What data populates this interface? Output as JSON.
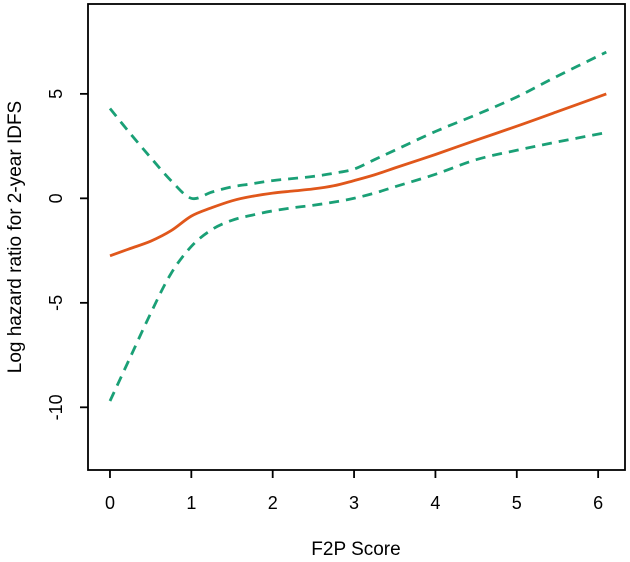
{
  "figure": {
    "kind": "r-base-spline-plot",
    "background": "#ffffff",
    "frame_color": "#000000"
  },
  "chart_data": {
    "type": "line",
    "title": "",
    "xlabel": "F2P Score",
    "ylabel": "Log hazard ratio for 2-year IDFS",
    "xlim": [
      -0.27,
      6.33
    ],
    "ylim": [
      -13.0,
      9.3
    ],
    "x_ticks": [
      "0",
      "1",
      "2",
      "3",
      "4",
      "5",
      "6"
    ],
    "x_tick_values": [
      0,
      1,
      2,
      3,
      4,
      5,
      6
    ],
    "y_ticks": [
      "5",
      "0",
      "-5",
      "-10"
    ],
    "y_tick_values": [
      5,
      0,
      -5,
      -10
    ],
    "grid": false,
    "legend": "none",
    "x": [
      0,
      0.25,
      0.5,
      0.75,
      1.0,
      1.25,
      1.5,
      1.75,
      2.0,
      2.25,
      2.5,
      2.75,
      3.0,
      3.25,
      3.5,
      4.0,
      4.5,
      5.0,
      5.5,
      6.1
    ],
    "series": [
      {
        "name": "log-hazard-ratio-estimate",
        "style": "solid",
        "color": "#E0571B",
        "stroke_width": 2.8,
        "values": [
          -2.75,
          -2.4,
          -2.05,
          -1.55,
          -0.85,
          -0.45,
          -0.12,
          0.1,
          0.25,
          0.35,
          0.45,
          0.6,
          0.85,
          1.12,
          1.45,
          2.1,
          2.78,
          3.45,
          4.15,
          5.0
        ]
      },
      {
        "name": "upper-95pct-ci",
        "style": "dashed",
        "color": "#1AA076",
        "stroke_width": 2.8,
        "values": [
          4.3,
          3.1,
          1.95,
          0.85,
          0.0,
          0.3,
          0.55,
          0.7,
          0.85,
          0.95,
          1.05,
          1.2,
          1.4,
          1.85,
          2.3,
          3.2,
          4.0,
          4.85,
          5.85,
          7.0
        ]
      },
      {
        "name": "lower-95pct-ci",
        "style": "dashed",
        "color": "#1AA076",
        "stroke_width": 2.8,
        "values": [
          -9.7,
          -7.6,
          -5.5,
          -3.6,
          -2.3,
          -1.5,
          -1.05,
          -0.8,
          -0.6,
          -0.45,
          -0.33,
          -0.18,
          0.0,
          0.25,
          0.55,
          1.15,
          1.85,
          2.3,
          2.7,
          3.15
        ]
      }
    ]
  }
}
